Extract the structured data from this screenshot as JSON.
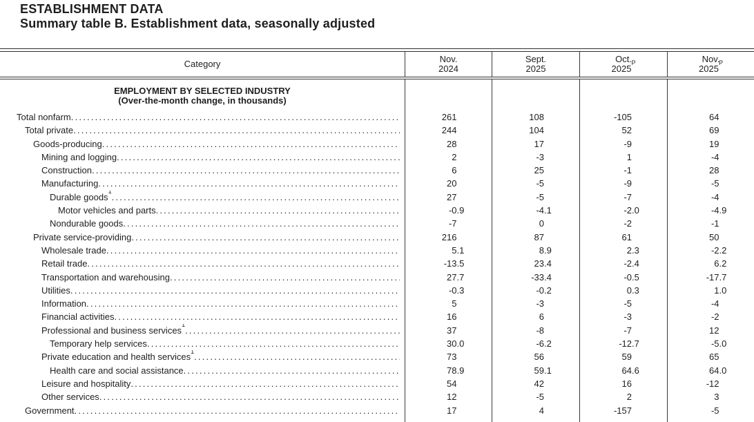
{
  "page": {
    "kicker": "ESTABLISHMENT DATA",
    "title": "Summary table B. Establishment data, seasonally adjusted"
  },
  "table": {
    "category_header": "Category",
    "columns": [
      {
        "line1": "Nov.",
        "line2": "2024",
        "sup": ""
      },
      {
        "line1": "Sept.",
        "line2": "2025",
        "sup": ""
      },
      {
        "line1": "Oct.",
        "line2": "2025",
        "sup": "P"
      },
      {
        "line1": "Nov.",
        "line2": "2025",
        "sup": "P"
      }
    ],
    "section": {
      "title": "EMPLOYMENT BY SELECTED INDUSTRY",
      "subtitle": "(Over-the-month change, in thousands)"
    },
    "rows": [
      {
        "label": "Total nonfarm",
        "indent": 0,
        "sup": "",
        "values": [
          "261",
          "108",
          "-105",
          "64"
        ]
      },
      {
        "label": "Total private",
        "indent": 1,
        "sup": "",
        "values": [
          "244",
          "104",
          "52",
          "69"
        ]
      },
      {
        "label": "Goods-producing",
        "indent": 2,
        "sup": "",
        "values": [
          "28",
          "17",
          "-9",
          "19"
        ]
      },
      {
        "label": "Mining and logging",
        "indent": 3,
        "sup": "",
        "values": [
          "2",
          "-3",
          "1",
          "-4"
        ]
      },
      {
        "label": "Construction",
        "indent": 3,
        "sup": "",
        "values": [
          "6",
          "25",
          "-1",
          "28"
        ]
      },
      {
        "label": "Manufacturing",
        "indent": 3,
        "sup": "",
        "values": [
          "20",
          "-5",
          "-9",
          "-5"
        ]
      },
      {
        "label": "Durable goods",
        "indent": 4,
        "sup": "1",
        "values": [
          "27",
          "-5",
          "-7",
          "-4"
        ]
      },
      {
        "label": "Motor vehicles and parts",
        "indent": 5,
        "sup": "",
        "values": [
          "-0.9",
          "-4.1",
          "-2.0",
          "-4.9"
        ]
      },
      {
        "label": "Nondurable goods",
        "indent": 4,
        "sup": "",
        "values": [
          "-7",
          "0",
          "-2",
          "-1"
        ]
      },
      {
        "label": "Private service-providing",
        "indent": 2,
        "sup": "",
        "values": [
          "216",
          "87",
          "61",
          "50"
        ]
      },
      {
        "label": "Wholesale trade",
        "indent": 3,
        "sup": "",
        "values": [
          "5.1",
          "8.9",
          "2.3",
          "-2.2"
        ]
      },
      {
        "label": "Retail trade",
        "indent": 3,
        "sup": "",
        "values": [
          "-13.5",
          "23.4",
          "-2.4",
          "6.2"
        ]
      },
      {
        "label": "Transportation and warehousing",
        "indent": 3,
        "sup": "",
        "values": [
          "27.7",
          "-33.4",
          "-0.5",
          "-17.7"
        ]
      },
      {
        "label": "Utilities",
        "indent": 3,
        "sup": "",
        "values": [
          "-0.3",
          "-0.2",
          "0.3",
          "1.0"
        ]
      },
      {
        "label": "Information",
        "indent": 3,
        "sup": "",
        "values": [
          "5",
          "-3",
          "-5",
          "-4"
        ]
      },
      {
        "label": "Financial activities",
        "indent": 3,
        "sup": "",
        "values": [
          "16",
          "6",
          "-3",
          "-2"
        ]
      },
      {
        "label": "Professional and business services",
        "indent": 3,
        "sup": "1",
        "values": [
          "37",
          "-8",
          "-7",
          "12"
        ]
      },
      {
        "label": "Temporary help services",
        "indent": 4,
        "sup": "",
        "values": [
          "30.0",
          "-6.2",
          "-12.7",
          "-5.0"
        ]
      },
      {
        "label": "Private education and health services",
        "indent": 3,
        "sup": "1",
        "values": [
          "73",
          "56",
          "59",
          "65"
        ]
      },
      {
        "label": "Health care and social assistance",
        "indent": 4,
        "sup": "",
        "values": [
          "78.9",
          "59.1",
          "64.6",
          "64.0"
        ]
      },
      {
        "label": "Leisure and hospitality",
        "indent": 3,
        "sup": "",
        "values": [
          "54",
          "42",
          "16",
          "-12"
        ]
      },
      {
        "label": "Other services",
        "indent": 3,
        "sup": "",
        "values": [
          "12",
          "-5",
          "2",
          "3"
        ]
      },
      {
        "label": "Government",
        "indent": 1,
        "sup": "",
        "values": [
          "17",
          "4",
          "-157",
          "-5"
        ]
      }
    ]
  }
}
